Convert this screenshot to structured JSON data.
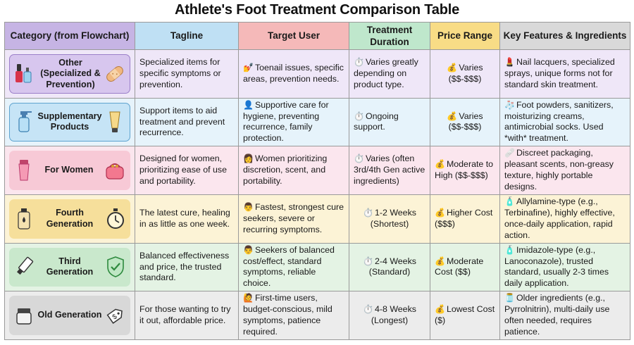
{
  "title": "Athlete's Foot Treatment Comparison Table",
  "headers": [
    "Category (from Flowchart)",
    "Tagline",
    "Target User",
    "Treatment Duration",
    "Price Range",
    "Key Features & Ingredients"
  ],
  "rows": [
    {
      "category": [
        "Other",
        "(Specialized &",
        "Prevention)"
      ],
      "tagline": "Specialized items for specific symptoms or prevention.",
      "target_icon": "💅",
      "target": "Toenail issues, specific areas, prevention needs.",
      "duration_icon": "⏱️",
      "duration": "Varies greatly depending on product type.",
      "price_icon": "💰",
      "price": "Varies ($$-$$$)",
      "features_icon": "💄",
      "features": "Nail lacquers, specialized sprays, unique forms not for standard skin treatment."
    },
    {
      "category": [
        "Supplementary",
        "Products"
      ],
      "tagline": "Support items to aid treatment and prevent recurrence.",
      "target_icon": "👤",
      "target": "Supportive care for hygiene, preventing recurrence, family protection.",
      "duration_icon": "⏱️",
      "duration": "Ongoing support.",
      "price_icon": "💰",
      "price": "Varies ($$-$$$)",
      "features_icon": "🧦",
      "features": "Foot powders, sanitizers, moisturizing creams, antimicrobial socks. Used *with* treatment."
    },
    {
      "category": [
        "For Women"
      ],
      "tagline": "Designed for women, prioritizing ease of use and portability.",
      "target_icon": "👩",
      "target": "Women prioritizing discretion, scent, and portability.",
      "duration_icon": "⏱️",
      "duration": "Varies (often 3rd/4th Gen active ingredients)",
      "price_icon": "💰",
      "price": "Moderate to High ($$-$$$)",
      "features_icon": "🩹",
      "features": "Discreet packaging, pleasant scents, non-greasy texture, highly portable designs."
    },
    {
      "category": [
        "Fourth Generation"
      ],
      "tagline": "The latest cure, healing in as little as one week.",
      "target_icon": "👨",
      "target": "Fastest, strongest cure seekers, severe or recurring symptoms.",
      "duration_icon": "⏱️",
      "duration": "1-2 Weeks (Shortest)",
      "price_icon": "💰",
      "price": "Higher Cost ($$$)",
      "features_icon": "🧴",
      "features": "Allylamine-type (e.g., Terbinafine), highly effective, once-daily application, rapid action."
    },
    {
      "category": [
        "Third Generation"
      ],
      "tagline": "Balanced effectiveness and price, the trusted standard.",
      "target_icon": "👨",
      "target": "Seekers of balanced cost/effect, standard symptoms, reliable choice.",
      "duration_icon": "⏱️",
      "duration": "2-4 Weeks (Standard)",
      "price_icon": "💰",
      "price": "Moderate Cost ($$)",
      "features_icon": "🧴",
      "features": "Imidazole-type (e.g., Lanoconazole), trusted standard, usually 2-3 times daily application."
    },
    {
      "category": [
        "Old Generation"
      ],
      "tagline": "For those wanting to try it out, affordable price.",
      "target_icon": "🙋",
      "target": "First-time users, budget-conscious, mild symptoms, patience required.",
      "duration_icon": "⏱️",
      "duration": "4-8 Weeks (Longest)",
      "price_icon": "💰",
      "price": "Lowest Cost ($)",
      "features_icon": "🫙",
      "features": "Older ingredients (e.g., Pyrrolnitrin), multi-daily use often needed, requires patience."
    }
  ],
  "icons": {
    "other": [
      "nail-polish-icon",
      "spray-bottle-icon",
      "bandage-icon"
    ],
    "supplementary": [
      "spray-bottle-icon",
      "cream-tube-icon"
    ],
    "for_women": [
      "cream-tube-icon",
      "pouch-icon"
    ],
    "fourth": [
      "cream-tube-icon",
      "stopwatch-icon"
    ],
    "third": [
      "ointment-tube-icon",
      "shield-check-icon"
    ],
    "old": [
      "jar-icon",
      "price-tag-icon"
    ]
  }
}
